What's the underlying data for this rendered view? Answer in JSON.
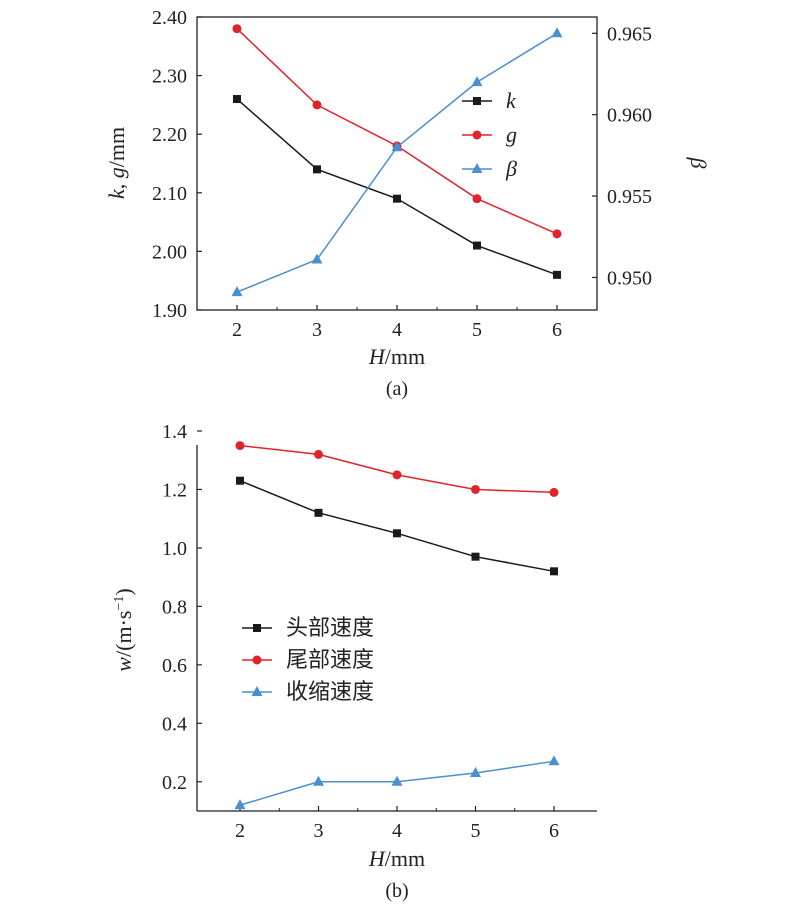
{
  "colors": {
    "black": "#1a1a1a",
    "red": "#e0242c",
    "blue": "#4a8fd0"
  },
  "chart_data": [
    {
      "type": "line",
      "panel_label": "(a)",
      "x": [
        2,
        3,
        4,
        5,
        6
      ],
      "x_ticks": [
        "2",
        "3",
        "4",
        "5",
        "6"
      ],
      "xlabel_italic": "H",
      "xlabel_rest": "/mm",
      "ylabel_italic_1": "k",
      "ylabel_sep": ", ",
      "ylabel_italic_2": "g",
      "ylabel_rest": "/mm",
      "ylim": [
        1.9,
        2.4
      ],
      "y_ticks": [
        "1.90",
        "2.00",
        "2.10",
        "2.20",
        "2.30",
        "2.40"
      ],
      "y2label": "β",
      "y2lim": [
        0.948,
        0.966
      ],
      "y2_ticks": [
        "0.950",
        "0.955",
        "0.960",
        "0.965"
      ],
      "legend_position": "top-right",
      "series": [
        {
          "name": "k",
          "axis": "left",
          "marker": "square",
          "color": "#1a1a1a",
          "values": [
            2.26,
            2.14,
            2.09,
            2.01,
            1.96
          ]
        },
        {
          "name": "g",
          "axis": "left",
          "marker": "circle",
          "color": "#e0242c",
          "values": [
            2.38,
            2.25,
            2.18,
            2.09,
            2.03
          ]
        },
        {
          "name": "β",
          "axis": "right",
          "marker": "triangle",
          "color": "#4a8fd0",
          "values": [
            0.9491,
            0.9511,
            0.958,
            0.962,
            0.965
          ]
        }
      ]
    },
    {
      "type": "line",
      "panel_label": "(b)",
      "x": [
        2,
        3,
        4,
        5,
        6
      ],
      "x_ticks": [
        "2",
        "3",
        "4",
        "5",
        "6"
      ],
      "xlabel_italic": "H",
      "xlabel_rest": "/mm",
      "ylabel_italic": "w",
      "ylabel_rest": "/(m·s",
      "ylabel_sup": "−1",
      "ylabel_close": ")",
      "ylim": [
        0.1,
        1.4
      ],
      "y_ticks": [
        "0.2",
        "0.4",
        "0.6",
        "0.8",
        "1.0",
        "1.2",
        "1.4"
      ],
      "legend_position": "middle-left",
      "series": [
        {
          "name": "头部速度",
          "marker": "square",
          "color": "#1a1a1a",
          "values": [
            1.23,
            1.12,
            1.05,
            0.97,
            0.92
          ]
        },
        {
          "name": "尾部速度",
          "marker": "circle",
          "color": "#e0242c",
          "values": [
            1.35,
            1.32,
            1.25,
            1.2,
            1.19
          ]
        },
        {
          "name": "收缩速度",
          "marker": "triangle",
          "color": "#4a8fd0",
          "values": [
            0.12,
            0.2,
            0.2,
            0.23,
            0.27
          ]
        }
      ]
    }
  ]
}
